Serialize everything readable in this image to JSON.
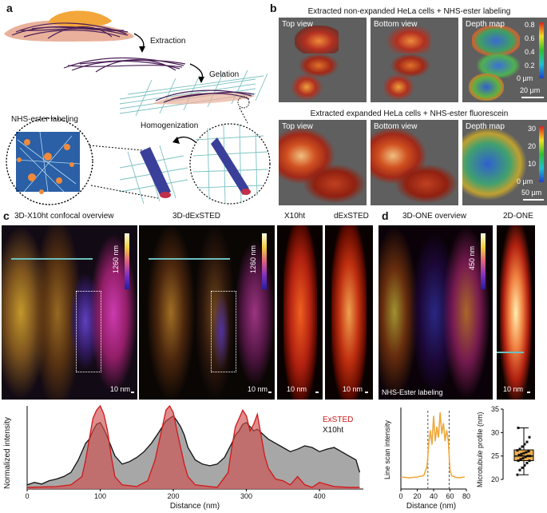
{
  "panels": {
    "a": "a",
    "b": "b",
    "c": "c",
    "d": "d"
  },
  "a": {
    "extraction": "Extraction",
    "gelation": "Gelation",
    "nhs_labeling": "NHS-ester labeling",
    "homogenization": "Homogenization"
  },
  "b": {
    "title1": "Extracted non-expanded HeLa cells + NHS-ester labeling",
    "title2": "Extracted expanded HeLa cells + NHS-ester fluorescein",
    "top_view": "Top view",
    "bottom_view": "Bottom view",
    "depth_map": "Depth map",
    "depth1_ticks": [
      "0.8",
      "0.6",
      "0.4",
      "0.2",
      "0 µm"
    ],
    "scale1": "20 µm",
    "depth2_ticks": [
      "30",
      "20",
      "10",
      "0 µm"
    ],
    "scale2": "50 µm"
  },
  "c": {
    "title_x10": "3D-X10ht confocal overview",
    "title_dexsted": "3D-dExSTED",
    "title_x10ht": "X10ht",
    "title_dex": "dExSTED",
    "cbar1": "1260 nm",
    "cbar2": "1260 nm",
    "scale": "10 nm"
  },
  "d": {
    "title_overview": "3D-ONE overview",
    "title_2d": "2D-ONE",
    "cbar": "450 nm",
    "nhs_label": "NHS-Ester labeling",
    "scale": "10 nm"
  },
  "colors": {
    "exsted": "#d01818",
    "x10ht": "#111111",
    "orange": "#f0a83a",
    "teal": "#6bbfbf"
  },
  "chart_data": [
    {
      "type": "area",
      "title": "",
      "xlabel": "Distance (nm)",
      "ylabel": "Normalized intensity",
      "xlim": [
        0,
        460
      ],
      "ylim": [
        0,
        1
      ],
      "xticks": [
        "0",
        "100",
        "200",
        "300",
        "400"
      ],
      "legend": [
        "ExSTED",
        "X10ht"
      ],
      "series": [
        {
          "name": "X10ht",
          "x": [
            0,
            10,
            20,
            30,
            40,
            50,
            60,
            70,
            80,
            85,
            90,
            95,
            100,
            105,
            110,
            120,
            130,
            140,
            150,
            160,
            170,
            180,
            185,
            190,
            195,
            200,
            205,
            210,
            215,
            220,
            230,
            240,
            250,
            260,
            270,
            280,
            285,
            290,
            295,
            300,
            305,
            310,
            315,
            320,
            330,
            340,
            350,
            360,
            370,
            380,
            390,
            400,
            410,
            420,
            430,
            440,
            450,
            455
          ],
          "y": [
            0.05,
            0.08,
            0.06,
            0.1,
            0.12,
            0.15,
            0.2,
            0.35,
            0.55,
            0.6,
            0.7,
            0.78,
            0.8,
            0.72,
            0.62,
            0.4,
            0.3,
            0.33,
            0.38,
            0.45,
            0.55,
            0.68,
            0.75,
            0.82,
            0.85,
            0.88,
            0.82,
            0.75,
            0.65,
            0.5,
            0.35,
            0.3,
            0.28,
            0.3,
            0.38,
            0.55,
            0.65,
            0.7,
            0.78,
            0.8,
            0.75,
            0.7,
            0.72,
            0.68,
            0.6,
            0.55,
            0.5,
            0.45,
            0.48,
            0.52,
            0.5,
            0.45,
            0.48,
            0.5,
            0.45,
            0.4,
            0.35,
            0.2
          ]
        },
        {
          "name": "ExSTED",
          "x": [
            0,
            40,
            60,
            75,
            80,
            85,
            90,
            95,
            100,
            105,
            110,
            115,
            120,
            130,
            150,
            165,
            175,
            180,
            185,
            190,
            195,
            200,
            205,
            210,
            215,
            220,
            230,
            260,
            275,
            280,
            285,
            290,
            295,
            300,
            305,
            310,
            315,
            320,
            325,
            330,
            340,
            350,
            360,
            370,
            380,
            390,
            400,
            420,
            440,
            455
          ],
          "y": [
            0.02,
            0.03,
            0.05,
            0.15,
            0.35,
            0.6,
            0.85,
            0.95,
            1.0,
            0.9,
            0.7,
            0.4,
            0.15,
            0.05,
            0.03,
            0.1,
            0.35,
            0.55,
            0.75,
            0.95,
            1.0,
            0.92,
            0.7,
            0.5,
            0.3,
            0.15,
            0.05,
            0.02,
            0.2,
            0.5,
            0.75,
            0.85,
            0.95,
            0.88,
            0.7,
            0.78,
            0.9,
            0.65,
            0.4,
            0.25,
            0.12,
            0.1,
            0.05,
            0.15,
            0.05,
            0.02,
            0.08,
            0.03,
            0.02,
            0.02
          ]
        }
      ]
    },
    {
      "type": "line",
      "title": "",
      "xlabel": "Distance (nm)",
      "ylabel": "Line scan intensity",
      "xlim": [
        0,
        80
      ],
      "xticks": [
        "0",
        "20",
        "40",
        "60",
        "80"
      ],
      "markers": [
        33,
        59
      ],
      "series": [
        {
          "name": "profile",
          "x": [
            0,
            10,
            20,
            28,
            32,
            34,
            36,
            38,
            40,
            42,
            44,
            46,
            48,
            50,
            52,
            54,
            56,
            58,
            60,
            62,
            66,
            70,
            78
          ],
          "y": [
            0.1,
            0.09,
            0.1,
            0.12,
            0.25,
            0.55,
            0.75,
            0.55,
            0.95,
            0.6,
            0.8,
            0.65,
            1.0,
            0.7,
            0.85,
            0.6,
            0.75,
            0.6,
            0.2,
            0.12,
            0.1,
            0.09,
            0.1
          ]
        }
      ]
    },
    {
      "type": "box",
      "ylabel": "Microtubule profile (nm)",
      "ylim": [
        20,
        35
      ],
      "yticks": [
        "20",
        "25",
        "30",
        "35"
      ],
      "box": {
        "min": 21,
        "q1": 24,
        "median": 25,
        "q3": 26.3,
        "max": 31
      },
      "points": [
        21,
        22,
        22.5,
        23,
        23.5,
        24,
        24,
        24.3,
        24.5,
        24.8,
        25,
        25,
        25.2,
        25.4,
        25.6,
        25.8,
        26,
        26.2,
        26.5,
        27,
        27.5,
        28,
        29,
        31
      ]
    }
  ]
}
